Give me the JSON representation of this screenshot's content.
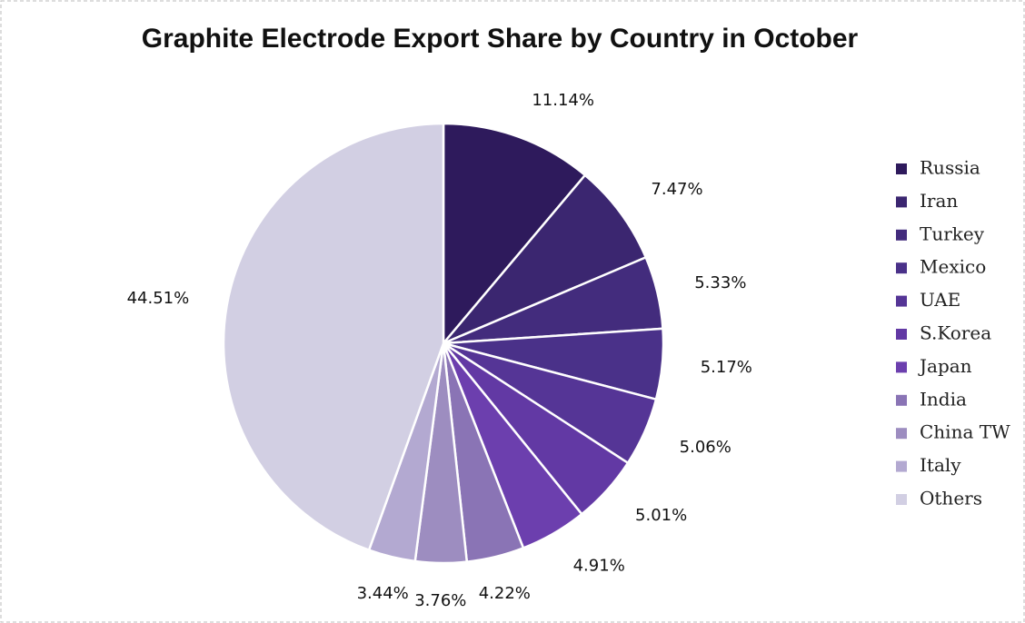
{
  "chart_data": {
    "type": "pie",
    "title": "Graphite Electrode Export Share by Country in October",
    "categories": [
      "Russia",
      "Iran",
      "Turkey",
      "Mexico",
      "UAE",
      "S.Korea",
      "Japan",
      "India",
      "China TW",
      "Italy",
      "Others"
    ],
    "values": [
      11.14,
      7.47,
      5.33,
      5.17,
      5.06,
      5.01,
      4.91,
      4.22,
      3.76,
      3.44,
      44.51
    ],
    "value_labels": [
      "11.14%",
      "7.47%",
      "5.33%",
      "5.17%",
      "5.06%",
      "5.01%",
      "4.91%",
      "4.22%",
      "3.76%",
      "3.44%",
      "44.51%"
    ],
    "colors": [
      "#2e1a5c",
      "#3b2670",
      "#432c7d",
      "#4a3189",
      "#553596",
      "#6239a4",
      "#6c3fae",
      "#8a74b5",
      "#9d8dc0",
      "#b3a9d1",
      "#d2cfe3"
    ],
    "legend": "right"
  }
}
